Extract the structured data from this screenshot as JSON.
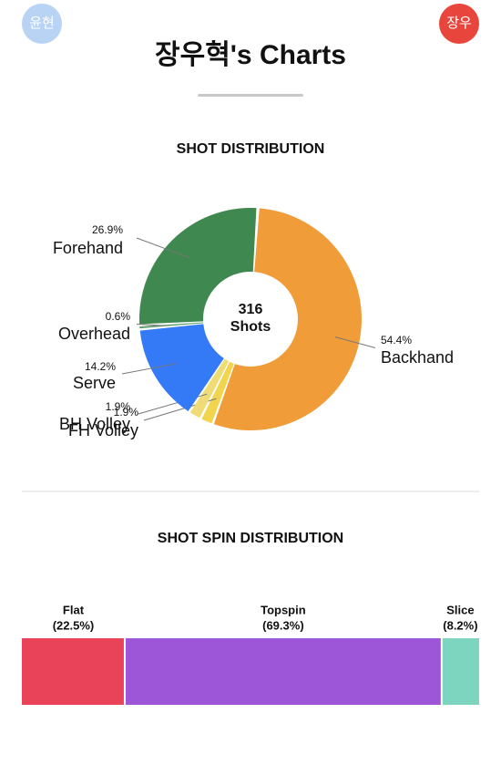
{
  "header": {
    "left_avatar": "윤현",
    "right_avatar": "장우",
    "title": "장우혁's Charts"
  },
  "chart_data": [
    {
      "type": "donut",
      "title": "SHOT DISTRIBUTION",
      "total": 316,
      "center_label": "Shots",
      "categories": [
        "Backhand",
        "FH Volley",
        "BH Volley",
        "Serve",
        "Overhead",
        "Forehand"
      ],
      "values": [
        54.4,
        1.9,
        1.9,
        14.2,
        0.6,
        26.9
      ],
      "value_labels": [
        "54.4%",
        "1.9%",
        "1.9%",
        "14.2%",
        "0.6%",
        "26.9%"
      ],
      "colors": [
        "#f09c39",
        "#f2d54e",
        "#efdc77",
        "#3479f6",
        "#5b9a6a",
        "#3f8850"
      ]
    },
    {
      "type": "stacked-bar",
      "title": "SHOT SPIN DISTRIBUTION",
      "categories": [
        "Flat",
        "Topspin",
        "Slice"
      ],
      "values": [
        22.5,
        69.3,
        8.2
      ],
      "value_labels": [
        "(22.5%)",
        "(69.3%)",
        "(8.2%)"
      ],
      "colors": [
        "#e9435a",
        "#9e56d8",
        "#7dd5c0"
      ]
    }
  ]
}
